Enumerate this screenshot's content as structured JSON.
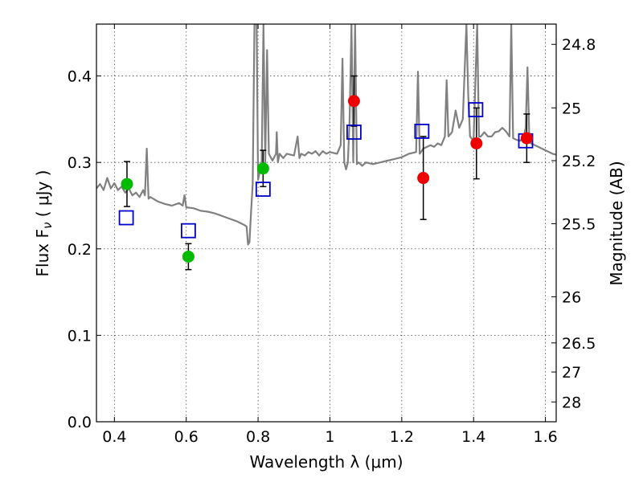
{
  "chart_data": {
    "type": "scatter",
    "xlabel": "Wavelength  λ (μm)",
    "ylabel": "Flux  F",
    "ylabel_sub": "ν",
    "ylabel_unit": " ( μJy )",
    "y2label": "Magnitude (AB)",
    "xlim": [
      0.35,
      1.63
    ],
    "ylim": [
      0.0,
      0.46
    ],
    "grid": true,
    "x_ticks": [
      {
        "value": 0.4,
        "label": "0.4"
      },
      {
        "value": 0.6,
        "label": "0.6"
      },
      {
        "value": 0.8,
        "label": "0.8"
      },
      {
        "value": 1.0,
        "label": "1"
      },
      {
        "value": 1.2,
        "label": "1.2"
      },
      {
        "value": 1.4,
        "label": "1.4"
      },
      {
        "value": 1.6,
        "label": "1.6"
      }
    ],
    "y_ticks": [
      {
        "value": 0.0,
        "label": "0.0"
      },
      {
        "value": 0.1,
        "label": "0.1"
      },
      {
        "value": 0.2,
        "label": "0.2"
      },
      {
        "value": 0.3,
        "label": "0.3"
      },
      {
        "value": 0.4,
        "label": "0.4"
      }
    ],
    "y2_ticks": [
      {
        "value": 24.8,
        "label": "24.8"
      },
      {
        "value": 25.0,
        "label": "25"
      },
      {
        "value": 25.2,
        "label": "25.2"
      },
      {
        "value": 25.5,
        "label": "25.5"
      },
      {
        "value": 26.0,
        "label": "26"
      },
      {
        "value": 26.5,
        "label": "26.5"
      },
      {
        "value": 27.0,
        "label": "27"
      },
      {
        "value": 28.0,
        "label": "28"
      }
    ],
    "colors": {
      "spectrum": "#808080",
      "green": "#00bb00",
      "red": "#ee0000",
      "model": "#0000cc",
      "errorbar": "#000000"
    },
    "model_points": [
      {
        "x": 0.433,
        "y": 0.236
      },
      {
        "x": 0.606,
        "y": 0.221
      },
      {
        "x": 0.814,
        "y": 0.269
      },
      {
        "x": 1.067,
        "y": 0.335
      },
      {
        "x": 1.256,
        "y": 0.336
      },
      {
        "x": 1.406,
        "y": 0.361
      },
      {
        "x": 1.545,
        "y": 0.325
      }
    ],
    "observed_points": [
      {
        "x": 0.435,
        "y": 0.275,
        "err": 0.026,
        "color": "green"
      },
      {
        "x": 0.606,
        "y": 0.191,
        "err": 0.015,
        "color": "green"
      },
      {
        "x": 0.814,
        "y": 0.293,
        "err": 0.021,
        "color": "green"
      },
      {
        "x": 1.067,
        "y": 0.371,
        "err": 0.029,
        "color": "red"
      },
      {
        "x": 1.26,
        "y": 0.282,
        "err": 0.048,
        "color": "red"
      },
      {
        "x": 1.408,
        "y": 0.322,
        "err": 0.041,
        "color": "red"
      },
      {
        "x": 1.548,
        "y": 0.328,
        "err": 0.028,
        "color": "red"
      }
    ],
    "spectrum": [
      [
        0.35,
        0.27
      ],
      [
        0.36,
        0.275
      ],
      [
        0.37,
        0.268
      ],
      [
        0.38,
        0.282
      ],
      [
        0.39,
        0.27
      ],
      [
        0.4,
        0.276
      ],
      [
        0.41,
        0.268
      ],
      [
        0.42,
        0.272
      ],
      [
        0.43,
        0.265
      ],
      [
        0.44,
        0.27
      ],
      [
        0.45,
        0.262
      ],
      [
        0.46,
        0.265
      ],
      [
        0.47,
        0.26
      ],
      [
        0.48,
        0.268
      ],
      [
        0.485,
        0.262
      ],
      [
        0.49,
        0.316
      ],
      [
        0.495,
        0.258
      ],
      [
        0.5,
        0.26
      ],
      [
        0.52,
        0.255
      ],
      [
        0.54,
        0.252
      ],
      [
        0.56,
        0.25
      ],
      [
        0.58,
        0.253
      ],
      [
        0.59,
        0.25
      ],
      [
        0.595,
        0.262
      ],
      [
        0.6,
        0.248
      ],
      [
        0.62,
        0.247
      ],
      [
        0.64,
        0.244
      ],
      [
        0.66,
        0.243
      ],
      [
        0.68,
        0.241
      ],
      [
        0.7,
        0.238
      ],
      [
        0.72,
        0.235
      ],
      [
        0.74,
        0.232
      ],
      [
        0.75,
        0.23
      ],
      [
        0.76,
        0.228
      ],
      [
        0.768,
        0.226
      ],
      [
        0.772,
        0.205
      ],
      [
        0.776,
        0.208
      ],
      [
        0.78,
        0.24
      ],
      [
        0.785,
        0.275
      ],
      [
        0.79,
        0.46
      ],
      [
        0.796,
        0.46
      ],
      [
        0.8,
        0.28
      ],
      [
        0.805,
        0.29
      ],
      [
        0.81,
        0.3
      ],
      [
        0.815,
        0.46
      ],
      [
        0.82,
        0.3
      ],
      [
        0.825,
        0.43
      ],
      [
        0.83,
        0.31
      ],
      [
        0.84,
        0.302
      ],
      [
        0.85,
        0.31
      ],
      [
        0.852,
        0.335
      ],
      [
        0.855,
        0.3
      ],
      [
        0.86,
        0.31
      ],
      [
        0.87,
        0.305
      ],
      [
        0.88,
        0.31
      ],
      [
        0.9,
        0.308
      ],
      [
        0.91,
        0.33
      ],
      [
        0.915,
        0.305
      ],
      [
        0.92,
        0.31
      ],
      [
        0.93,
        0.308
      ],
      [
        0.94,
        0.312
      ],
      [
        0.95,
        0.31
      ],
      [
        0.96,
        0.313
      ],
      [
        0.97,
        0.308
      ],
      [
        0.98,
        0.313
      ],
      [
        0.99,
        0.31
      ],
      [
        1.0,
        0.312
      ],
      [
        1.02,
        0.31
      ],
      [
        1.03,
        0.32
      ],
      [
        1.035,
        0.42
      ],
      [
        1.04,
        0.3
      ],
      [
        1.045,
        0.292
      ],
      [
        1.05,
        0.3
      ],
      [
        1.055,
        0.35
      ],
      [
        1.06,
        0.46
      ],
      [
        1.065,
        0.3
      ],
      [
        1.07,
        0.46
      ],
      [
        1.075,
        0.298
      ],
      [
        1.08,
        0.3
      ],
      [
        1.09,
        0.296
      ],
      [
        1.1,
        0.3
      ],
      [
        1.12,
        0.298
      ],
      [
        1.14,
        0.3
      ],
      [
        1.16,
        0.302
      ],
      [
        1.18,
        0.304
      ],
      [
        1.2,
        0.306
      ],
      [
        1.22,
        0.31
      ],
      [
        1.24,
        0.312
      ],
      [
        1.245,
        0.405
      ],
      [
        1.25,
        0.31
      ],
      [
        1.26,
        0.316
      ],
      [
        1.28,
        0.32
      ],
      [
        1.29,
        0.318
      ],
      [
        1.3,
        0.322
      ],
      [
        1.31,
        0.32
      ],
      [
        1.32,
        0.33
      ],
      [
        1.325,
        0.395
      ],
      [
        1.33,
        0.33
      ],
      [
        1.34,
        0.335
      ],
      [
        1.35,
        0.36
      ],
      [
        1.36,
        0.34
      ],
      [
        1.37,
        0.35
      ],
      [
        1.38,
        0.46
      ],
      [
        1.385,
        0.38
      ],
      [
        1.39,
        0.33
      ],
      [
        1.4,
        0.325
      ],
      [
        1.41,
        0.46
      ],
      [
        1.415,
        0.33
      ],
      [
        1.42,
        0.33
      ],
      [
        1.43,
        0.335
      ],
      [
        1.44,
        0.33
      ],
      [
        1.45,
        0.33
      ],
      [
        1.46,
        0.335
      ],
      [
        1.47,
        0.336
      ],
      [
        1.48,
        0.34
      ],
      [
        1.49,
        0.336
      ],
      [
        1.5,
        0.33
      ],
      [
        1.505,
        0.46
      ],
      [
        1.51,
        0.328
      ],
      [
        1.52,
        0.326
      ],
      [
        1.53,
        0.325
      ],
      [
        1.54,
        0.33
      ],
      [
        1.545,
        0.34
      ],
      [
        1.55,
        0.41
      ],
      [
        1.555,
        0.33
      ],
      [
        1.56,
        0.322
      ],
      [
        1.58,
        0.318
      ],
      [
        1.6,
        0.314
      ],
      [
        1.62,
        0.31
      ],
      [
        1.63,
        0.309
      ]
    ]
  }
}
